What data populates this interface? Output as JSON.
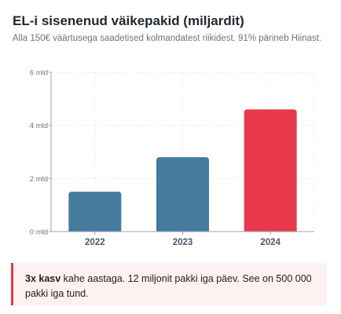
{
  "header": {
    "title": "EL-i sisenenud väikepakid (miljardit)",
    "subtitle": "Alla 150€ väärtusega saadetised kolmandatest riikidest. 91% pärineb Hiinast."
  },
  "chart_data": {
    "type": "bar",
    "categories": [
      "2022",
      "2023",
      "2024"
    ],
    "values": [
      1.5,
      2.8,
      4.6
    ],
    "bar_colors": [
      "#457b9d",
      "#457b9d",
      "#e8394a"
    ],
    "y_ticks": [
      {
        "value": 0,
        "label": "0 mld"
      },
      {
        "value": 2,
        "label": "2 mld"
      },
      {
        "value": 4,
        "label": "4 mld"
      },
      {
        "value": 6,
        "label": "6 mld"
      }
    ],
    "ylim": [
      0,
      6
    ],
    "grid": true,
    "title": "EL-i sisenenud väikepakid (miljardit)",
    "xlabel": "",
    "ylabel": ""
  },
  "callout": {
    "highlight": "3x kasv",
    "text": " kahe aastaga. 12 miljonit pakki iga päev. See on 500 000 pakki iga tund.",
    "accent_color": "#e8394a"
  }
}
